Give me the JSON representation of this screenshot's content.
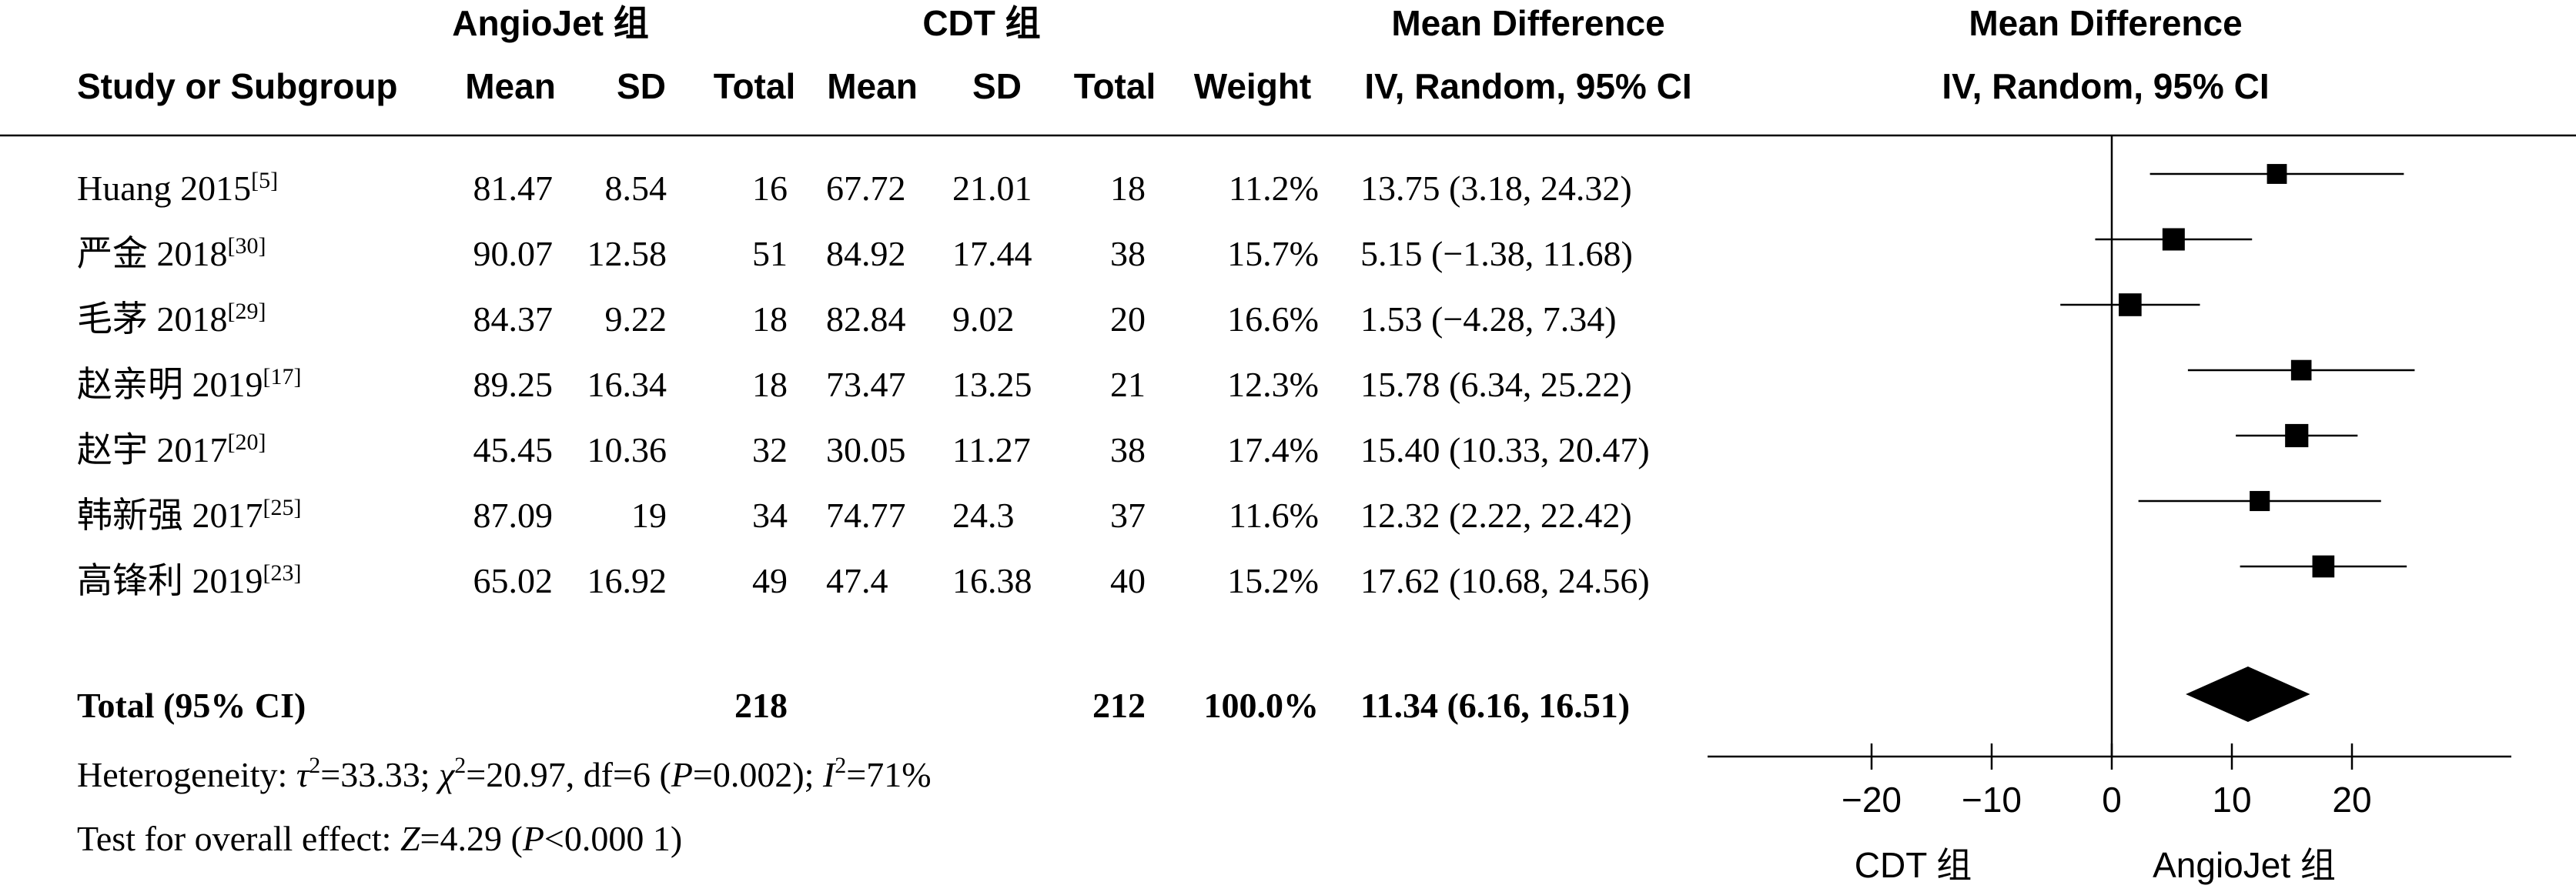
{
  "chart_data": {
    "type": "forest",
    "headers": {
      "group1": "AngioJet 组",
      "group2": "CDT 组",
      "mean_diff_top": "Mean Difference",
      "mean_diff_sub": "IV, Random, 95% CI",
      "plot_top": "Mean Difference",
      "plot_sub": "IV, Random, 95% CI",
      "study": "Study or Subgroup",
      "mean1": "Mean",
      "sd1": "SD",
      "total1": "Total",
      "mean2": "Mean",
      "sd2": "SD",
      "total2": "Total",
      "weight": "Weight"
    },
    "studies": [
      {
        "name": "Huang 2015",
        "ref": "[5]",
        "mean1": "81.47",
        "sd1": "8.54",
        "total1": "16",
        "mean2": "67.72",
        "sd2": "21.01",
        "total2": "18",
        "weight": "11.2%",
        "ci_text": "13.75 (3.18, 24.32)",
        "md": 13.75,
        "lo": 3.18,
        "hi": 24.32
      },
      {
        "name": "严金 2018",
        "ref": "[30]",
        "mean1": "90.07",
        "sd1": "12.58",
        "total1": "51",
        "mean2": "84.92",
        "sd2": "17.44",
        "total2": "38",
        "weight": "15.7%",
        "ci_text": "5.15 (−1.38, 11.68)",
        "md": 5.15,
        "lo": -1.38,
        "hi": 11.68
      },
      {
        "name": "毛茅 2018",
        "ref": "[29]",
        "mean1": "84.37",
        "sd1": "9.22",
        "total1": "18",
        "mean2": "82.84",
        "sd2": "9.02",
        "total2": "20",
        "weight": "16.6%",
        "ci_text": "1.53 (−4.28, 7.34)",
        "md": 1.53,
        "lo": -4.28,
        "hi": 7.34
      },
      {
        "name": "赵亲明 2019",
        "ref": "[17]",
        "mean1": "89.25",
        "sd1": "16.34",
        "total1": "18",
        "mean2": "73.47",
        "sd2": "13.25",
        "total2": "21",
        "weight": "12.3%",
        "ci_text": "15.78 (6.34, 25.22)",
        "md": 15.78,
        "lo": 6.34,
        "hi": 25.22
      },
      {
        "name": "赵宇 2017",
        "ref": "[20]",
        "mean1": "45.45",
        "sd1": "10.36",
        "total1": "32",
        "mean2": "30.05",
        "sd2": "11.27",
        "total2": "38",
        "weight": "17.4%",
        "ci_text": "15.40 (10.33, 20.47)",
        "md": 15.4,
        "lo": 10.33,
        "hi": 20.47
      },
      {
        "name": "韩新强 2017",
        "ref": "[25]",
        "mean1": "87.09",
        "sd1": "19",
        "total1": "34",
        "mean2": "74.77",
        "sd2": "24.3",
        "total2": "37",
        "weight": "11.6%",
        "ci_text": "12.32 (2.22, 22.42)",
        "md": 12.32,
        "lo": 2.22,
        "hi": 22.42
      },
      {
        "name": "高锋利 2019",
        "ref": "[23]",
        "mean1": "65.02",
        "sd1": "16.92",
        "total1": "49",
        "mean2": "47.4",
        "sd2": "16.38",
        "total2": "40",
        "weight": "15.2%",
        "ci_text": "17.62 (10.68, 24.56)",
        "md": 17.62,
        "lo": 10.68,
        "hi": 24.56
      }
    ],
    "total": {
      "label": "Total (95% CI)",
      "total1": "218",
      "total2": "212",
      "weight": "100.0%",
      "ci_text": "11.34 (6.16, 16.51)",
      "md": 11.34,
      "lo": 6.16,
      "hi": 16.51
    },
    "heterogeneity": {
      "prefix": "Heterogeneity: ",
      "tau_sym": "τ",
      "tau_val": "=33.33; ",
      "chi_sym": "χ",
      "chi_val": "=20.97, df=6 (",
      "p_sym": "P",
      "p_val": "=0.002); ",
      "i_sym": "I",
      "i_val": "=71%",
      "sup": "2"
    },
    "overall": {
      "prefix": "Test for overall effect: ",
      "z_sym": "Z",
      "z_val": "=4.29 (",
      "p_sym": "P",
      "p_val": "<0.000 1)"
    },
    "x_axis": {
      "min": -25,
      "max": 25,
      "ticks": [
        -20,
        -10,
        0,
        10,
        20
      ],
      "tick_labels": [
        "−20",
        "−10",
        "0",
        "10",
        "20"
      ]
    },
    "favours_left": "CDT 组",
    "favours_right": "AngioJet 组"
  }
}
